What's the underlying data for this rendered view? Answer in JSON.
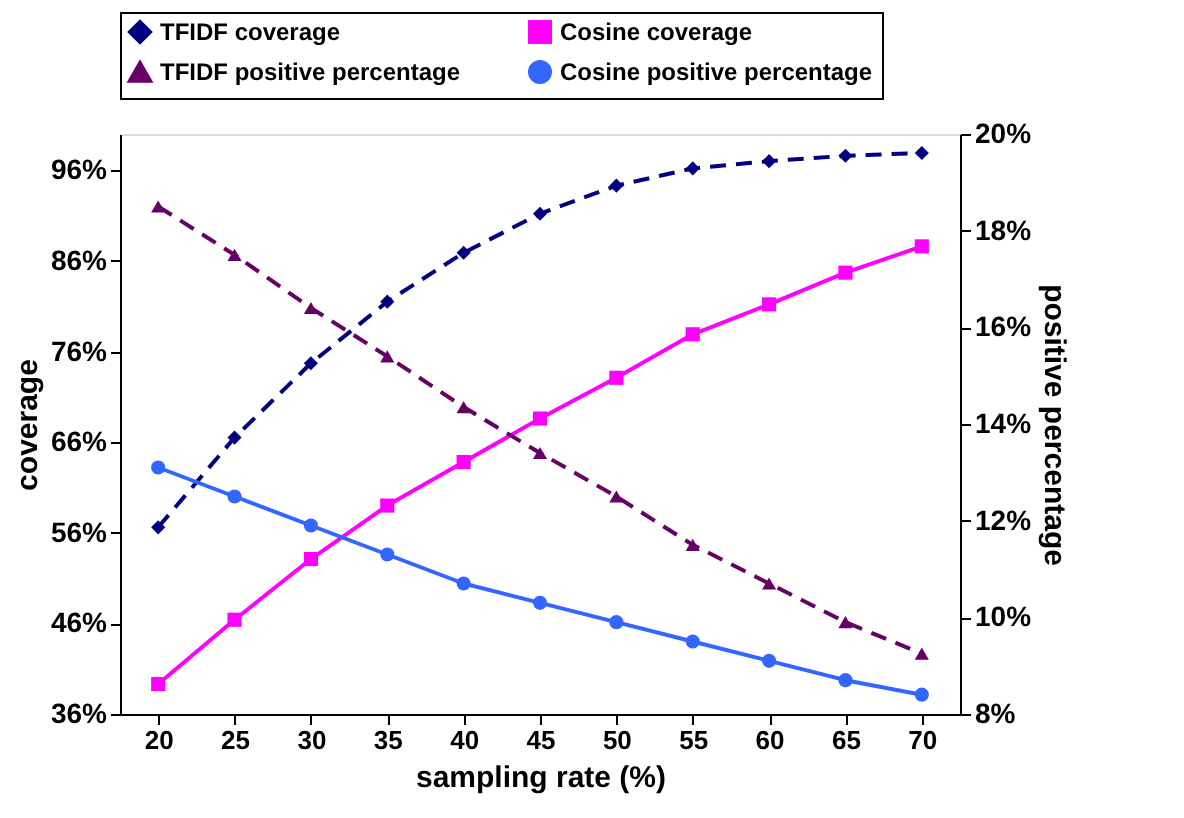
{
  "chart_data": {
    "type": "line",
    "xlabel": "sampling rate (%)",
    "ylabel": "coverage",
    "y2label": "positive percentage",
    "categories": [
      "20",
      "25",
      "30",
      "35",
      "40",
      "45",
      "50",
      "55",
      "60",
      "65",
      "70"
    ],
    "ylim": [
      36,
      100
    ],
    "yticks": [
      {
        "value": 36,
        "label": "36%"
      },
      {
        "value": 46,
        "label": "46%"
      },
      {
        "value": 56,
        "label": "56%"
      },
      {
        "value": 66,
        "label": "66%"
      },
      {
        "value": 76,
        "label": "76%"
      },
      {
        "value": 86,
        "label": "86%"
      },
      {
        "value": 96,
        "label": "96%"
      }
    ],
    "y2lim": [
      8,
      20
    ],
    "y2ticks": [
      {
        "value": 8,
        "label": "8%"
      },
      {
        "value": 10,
        "label": "10%"
      },
      {
        "value": 12,
        "label": "12%"
      },
      {
        "value": 14,
        "label": "14%"
      },
      {
        "value": 16,
        "label": "16%"
      },
      {
        "value": 18,
        "label": "18%"
      },
      {
        "value": 20,
        "label": "20%"
      }
    ],
    "grid": false,
    "legend": "top",
    "series": [
      {
        "name": "TFIDF coverage",
        "color": "#000080",
        "marker": "diamond",
        "line_style": "dashed",
        "values": [
          56.6,
          66.5,
          74.7,
          81.5,
          86.9,
          91.2,
          94.3,
          96.2,
          97.0,
          97.6,
          97.9
        ]
      },
      {
        "name": "Cosine coverage",
        "color": "#ff00ff",
        "marker": "square",
        "line_style": "solid",
        "values": [
          39.3,
          46.4,
          53.1,
          59.0,
          63.8,
          68.6,
          73.1,
          77.9,
          81.2,
          84.7,
          87.6
        ]
      },
      {
        "name": "TFIDF positive percentage",
        "color": "#660066",
        "marker": "triangle",
        "line_style": "dashed",
        "axis": "y2",
        "values": [
          18.5,
          17.5,
          16.4,
          15.4,
          14.35,
          13.4,
          12.5,
          11.5,
          10.7,
          9.9,
          9.25
        ]
      },
      {
        "name": "Cosine positive percentage",
        "color": "#3366ff",
        "marker": "circle",
        "line_style": "solid",
        "axis": "y2",
        "values": [
          13.1,
          12.5,
          11.9,
          11.3,
          10.7,
          10.3,
          9.9,
          9.5,
          9.1,
          8.7,
          8.4
        ]
      }
    ]
  }
}
